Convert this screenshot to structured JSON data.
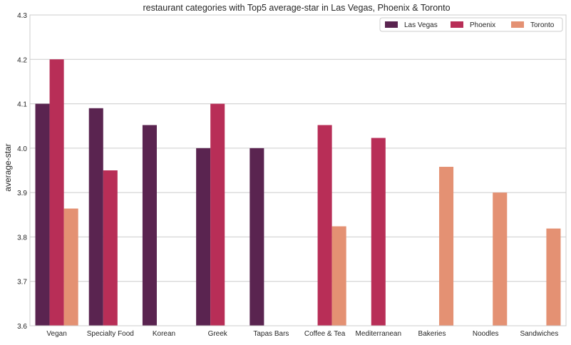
{
  "chart_data": {
    "type": "bar",
    "title": "restaurant categories with Top5 average-star in Las Vegas, Phoenix & Toronto",
    "xlabel": "",
    "ylabel": "average-star",
    "ylim": [
      3.6,
      4.3
    ],
    "yticks": [
      "3.6",
      "3.7",
      "3.8",
      "3.9",
      "4.0",
      "4.1",
      "4.2",
      "4.3"
    ],
    "grid": true,
    "legend_position": "top-right",
    "categories": [
      "Vegan",
      "Specialty Food",
      "Korean",
      "Greek",
      "Tapas Bars",
      "Coffee & Tea",
      "Mediterranean",
      "Bakeries",
      "Noodles",
      "Sandwiches"
    ],
    "series": [
      {
        "name": "Las Vegas",
        "color": "#5a2450",
        "values": [
          4.1,
          4.09,
          4.052,
          4.0,
          4.0,
          null,
          null,
          null,
          null,
          null
        ]
      },
      {
        "name": "Phoenix",
        "color": "#b82e57",
        "values": [
          4.2,
          3.95,
          null,
          4.1,
          null,
          4.052,
          4.023,
          null,
          null,
          null
        ]
      },
      {
        "name": "Toronto",
        "color": "#e49173",
        "values": [
          3.864,
          null,
          null,
          null,
          null,
          3.824,
          null,
          3.958,
          3.9,
          3.819
        ]
      }
    ]
  }
}
